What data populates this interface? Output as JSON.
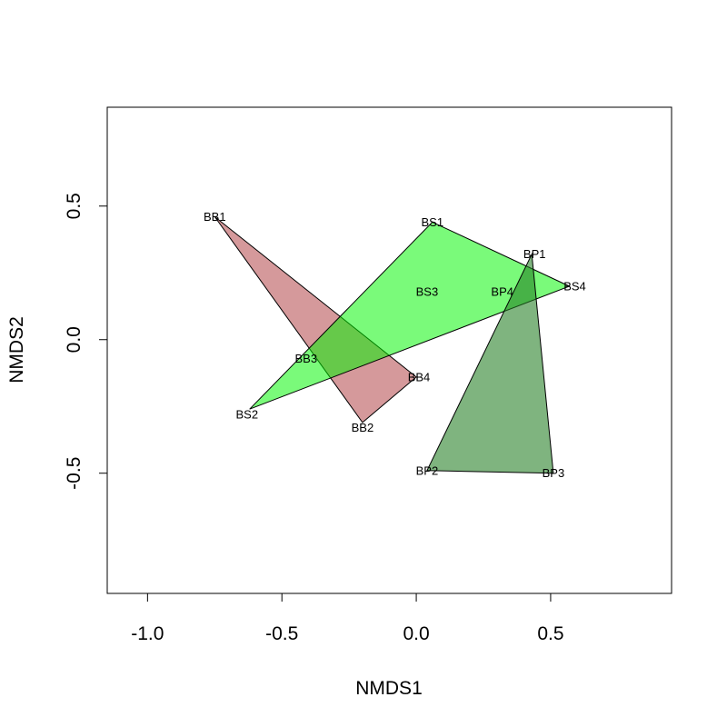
{
  "chart_data": {
    "type": "scatter",
    "xlabel": "NMDS1",
    "ylabel": "NMDS2",
    "xlim": [
      -1.15,
      0.95
    ],
    "ylim": [
      -0.95,
      0.87
    ],
    "x_ticks": [
      {
        "value": -1.0,
        "label": "-1.0"
      },
      {
        "value": -0.5,
        "label": "-0.5"
      },
      {
        "value": 0.0,
        "label": "0.0"
      },
      {
        "value": 0.5,
        "label": "0.5"
      }
    ],
    "y_ticks": [
      {
        "value": -0.5,
        "label": "-0.5"
      },
      {
        "value": 0.0,
        "label": "0.0"
      },
      {
        "value": 0.5,
        "label": "0.5"
      }
    ],
    "grid": false,
    "points": [
      {
        "label": "BB1",
        "x": -0.75,
        "y": 0.46
      },
      {
        "label": "BB2",
        "x": -0.2,
        "y": -0.33
      },
      {
        "label": "BB3",
        "x": -0.41,
        "y": -0.07
      },
      {
        "label": "BB4",
        "x": 0.01,
        "y": -0.14
      },
      {
        "label": "BS1",
        "x": 0.06,
        "y": 0.44
      },
      {
        "label": "BS2",
        "x": -0.63,
        "y": -0.28
      },
      {
        "label": "BS3",
        "x": 0.04,
        "y": 0.18
      },
      {
        "label": "BS4",
        "x": 0.59,
        "y": 0.2
      },
      {
        "label": "BP1",
        "x": 0.44,
        "y": 0.32
      },
      {
        "label": "BP2",
        "x": 0.04,
        "y": -0.49
      },
      {
        "label": "BP3",
        "x": 0.51,
        "y": -0.5
      },
      {
        "label": "BP4",
        "x": 0.32,
        "y": 0.18
      }
    ],
    "hulls": [
      {
        "group": "BB",
        "color": "#bc5a5d",
        "opacity": 0.62,
        "vertices": [
          [
            -0.75,
            0.46
          ],
          [
            0.0,
            -0.14
          ],
          [
            -0.2,
            -0.31
          ]
        ]
      },
      {
        "group": "BS",
        "color": "#00f500",
        "opacity": 0.52,
        "vertices": [
          [
            0.06,
            0.44
          ],
          [
            0.57,
            0.2
          ],
          [
            -0.62,
            -0.26
          ]
        ]
      },
      {
        "group": "BP",
        "color": "#237d23",
        "opacity": 0.58,
        "vertices": [
          [
            0.43,
            0.32
          ],
          [
            0.51,
            -0.5
          ],
          [
            0.04,
            -0.49
          ]
        ]
      }
    ]
  }
}
